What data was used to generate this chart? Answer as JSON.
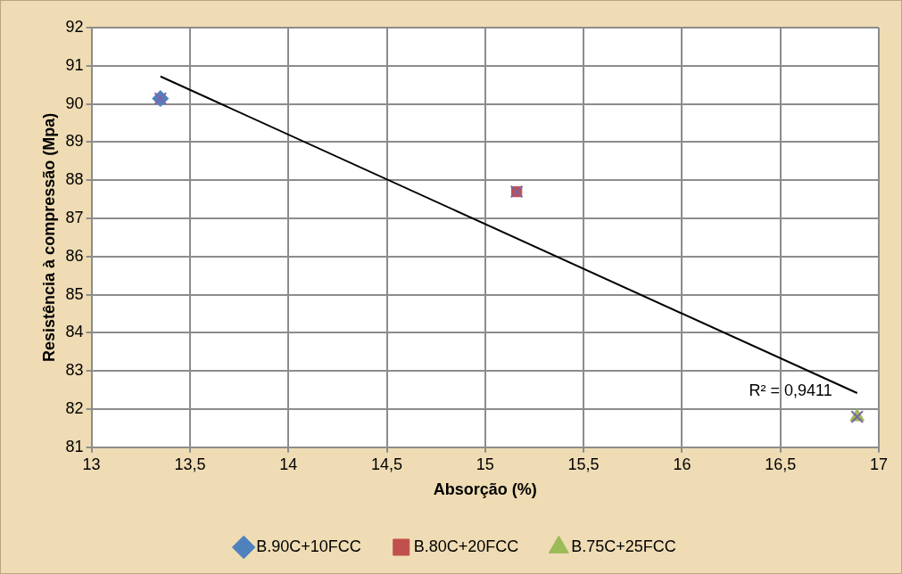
{
  "chart_data": {
    "type": "scatter",
    "xlabel": "Absorção (%)",
    "ylabel": "Resistência à compressão (Mpa)",
    "xlim": [
      13,
      17
    ],
    "xticks": [
      13,
      {
        "value": 13.5,
        "label": "13,5"
      },
      14,
      {
        "value": 14.5,
        "label": "14,5"
      },
      15,
      {
        "value": 15.5,
        "label": "15,5"
      },
      16,
      {
        "value": 16.5,
        "label": "16,5"
      },
      17
    ],
    "ylim": [
      81,
      92
    ],
    "yticks": [
      81,
      82,
      83,
      84,
      85,
      86,
      87,
      88,
      89,
      90,
      91,
      92
    ],
    "grid": true,
    "legend": "bottom",
    "annotations": [
      "R² = 0,9411"
    ],
    "series": [
      {
        "name": "B.90C+10FCC",
        "color": "#4f81bd",
        "marker": "diamond",
        "x": [
          13.35
        ],
        "values": [
          90.14
        ]
      },
      {
        "name": "B.80C+20FCC",
        "color": "#c0504d",
        "marker": "square",
        "x": [
          15.16
        ],
        "values": [
          87.7
        ]
      },
      {
        "name": "B.75C+25FCC",
        "color": "#9bbb59",
        "marker": "triangle",
        "x": [
          16.89
        ],
        "values": [
          81.8
        ]
      },
      {
        "color": "#8064a2",
        "marker": "cross",
        "x": [
          13.35,
          15.16,
          16.89
        ],
        "values": [
          90.14,
          87.7,
          81.8
        ]
      },
      {
        "type": "line",
        "color": "#000000",
        "marker": "none",
        "x": [
          13.35,
          16.89
        ],
        "values": [
          90.72,
          82.42
        ]
      }
    ]
  }
}
